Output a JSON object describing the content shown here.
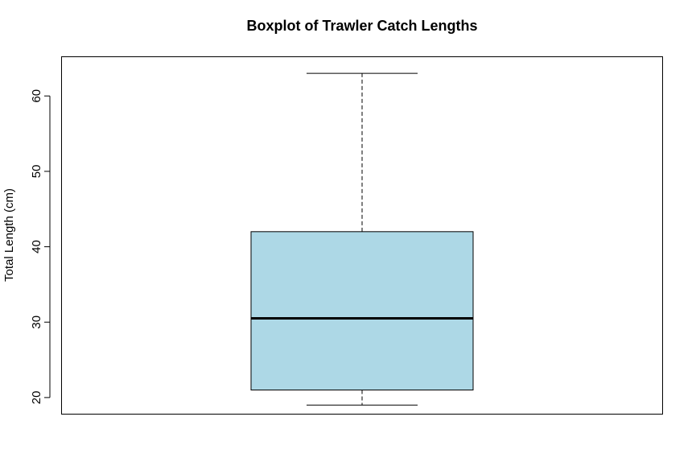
{
  "chart_data": {
    "type": "boxplot",
    "title": "Boxplot of Trawler Catch Lengths",
    "xlabel": "",
    "ylabel": "Total Length (cm)",
    "ylim": [
      17.8,
      65.2
    ],
    "yticks": [
      20,
      30,
      40,
      50,
      60
    ],
    "ytick_labels": [
      "20",
      "30",
      "40",
      "50",
      "60"
    ],
    "grid": false,
    "box": {
      "whisker_low": 19,
      "q1": 21,
      "median": 30.5,
      "q3": 42,
      "whisker_high": 63
    },
    "colors": {
      "box_fill": "#add8e6",
      "line": "#000000"
    }
  }
}
